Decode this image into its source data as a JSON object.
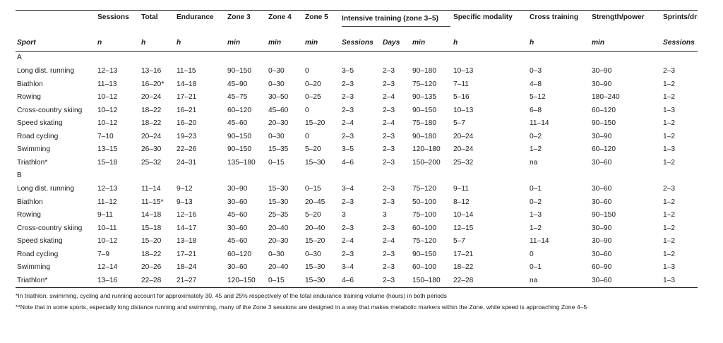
{
  "headers_top": {
    "sport": "",
    "sessions": "Sessions",
    "total": "Total",
    "endurance": "Endurance",
    "zone3": "Zone 3",
    "zone4": "Zone 4",
    "zone5": "Zone 5",
    "intensive": "Intensive training (zone 3–5)",
    "specific": "Specific modality",
    "cross": "Cross training",
    "strength": "Strength/power",
    "sprints": "Sprints/drills"
  },
  "headers_units": [
    "Sport",
    "n",
    "h",
    "h",
    "min",
    "min",
    "min",
    "Sessions",
    "Days",
    "min",
    "h",
    "h",
    "min",
    "Sessions"
  ],
  "groups": [
    {
      "label": "A",
      "rows": [
        [
          "Long dist. running",
          "12–13",
          "13–16",
          "11–15",
          "90–150",
          "0–30",
          "0",
          "3–5",
          "2–3",
          "90–180",
          "10–13",
          "0–3",
          "30–90",
          "2–3"
        ],
        [
          "Biathlon",
          "11–13",
          "16–20*",
          "14–18",
          "45–90",
          "0–30",
          "0–20",
          "2–3",
          "2–3",
          "75–120",
          "7–11",
          "4–8",
          "30–90",
          "1–2"
        ],
        [
          "Rowing",
          "10–12",
          "20–24",
          "17–21",
          "45–75",
          "30–50",
          "0–25",
          "2–3",
          "2–4",
          "90–135",
          "5–16",
          "5–12",
          "180–240",
          "1–2"
        ],
        [
          "Cross-country skiing",
          "10–12",
          "18–22",
          "16–21",
          "60–120",
          "45–60",
          "0",
          "2–3",
          "2–3",
          "90–150",
          "10–13",
          "6–8",
          "60–120",
          "1–3"
        ],
        [
          "Speed skating",
          "10–12",
          "18–22",
          "16–20",
          "45–60",
          "20–30",
          "15–20",
          "2–4",
          "2–4",
          "75–180",
          "5–7",
          "11–14",
          "90–150",
          "1–2"
        ],
        [
          "Road cycling",
          "7–10",
          "20–24",
          "19–23",
          "90–150",
          "0–30",
          "0",
          "2–3",
          "2–3",
          "90–180",
          "20–24",
          "0–2",
          "30–90",
          "1–2"
        ],
        [
          "Swimming",
          "13–15",
          "26–30",
          "22–26",
          "90–150",
          "15–35",
          "5–20",
          "3–5",
          "2–3",
          "120–180",
          "20–24",
          "1–2",
          "60–120",
          "1–3"
        ],
        [
          "Triathlon*",
          "15–18",
          "25–32",
          "24–31",
          "135–180",
          "0–15",
          "15–30",
          "4–6",
          "2–3",
          "150–200",
          "25–32",
          "na",
          "30–60",
          "1–2"
        ]
      ]
    },
    {
      "label": "B",
      "rows": [
        [
          "Long dist. running",
          "12–13",
          "11–14",
          "9–12",
          "30–90",
          "15–30",
          "0–15",
          "3–4",
          "2–3",
          "75–120",
          "9–11",
          "0–1",
          "30–60",
          "2–3"
        ],
        [
          "Biathlon",
          "11–12",
          "11–15*",
          "9–13",
          "30–60",
          "15–30",
          "20–45",
          "2–3",
          "2–3",
          "50–100",
          "8–12",
          "0–2",
          "30–60",
          "1–2"
        ],
        [
          "Rowing",
          "9–11",
          "14–18",
          "12–16",
          "45–60",
          "25–35",
          "5–20",
          "3",
          "3",
          "75–100",
          "10–14",
          "1–3",
          "90–150",
          "1–2"
        ],
        [
          "Cross-country skiing",
          "10–11",
          "15–18",
          "14–17",
          "30–60",
          "20–40",
          "20–40",
          "2–3",
          "2–3",
          "60–100",
          "12–15",
          "1–2",
          "30–90",
          "1–2"
        ],
        [
          "Speed skating",
          "10–12",
          "15–20",
          "13–18",
          "45–60",
          "20–30",
          "15–20",
          "2–4",
          "2–4",
          "75–120",
          "5–7",
          "11–14",
          "30–90",
          "1–2"
        ],
        [
          "Road cycling",
          "7–9",
          "18–22",
          "17–21",
          "60–120",
          "0–30",
          "0–30",
          "2–3",
          "2–3",
          "90–150",
          "17–21",
          "0",
          "30–60",
          "1–2"
        ],
        [
          "Swimming",
          "12–14",
          "20–26",
          "18–24",
          "30–60",
          "20–40",
          "15–30",
          "3–4",
          "2–3",
          "60–100",
          "18–22",
          "0–1",
          "60–90",
          "1–3"
        ],
        [
          "Triathlon*",
          "13–16",
          "22–28",
          "21–27",
          "120–150",
          "0–15",
          "15–30",
          "4–6",
          "2–3",
          "150–180",
          "22–28",
          "na",
          "30–60",
          "1–3"
        ]
      ]
    }
  ],
  "footnotes": [
    "*In triathlon, swimming, cycling and running account for approximately 30, 45 and 25% respectively of the total endurance training volume (hours) in both periods",
    "**Note that in some sports, especially long distance running and swimming, many of the Zone 3 sessions are designed in a way that makes metabolic markers within the Zone, while speed is approaching Zone 4–5"
  ]
}
